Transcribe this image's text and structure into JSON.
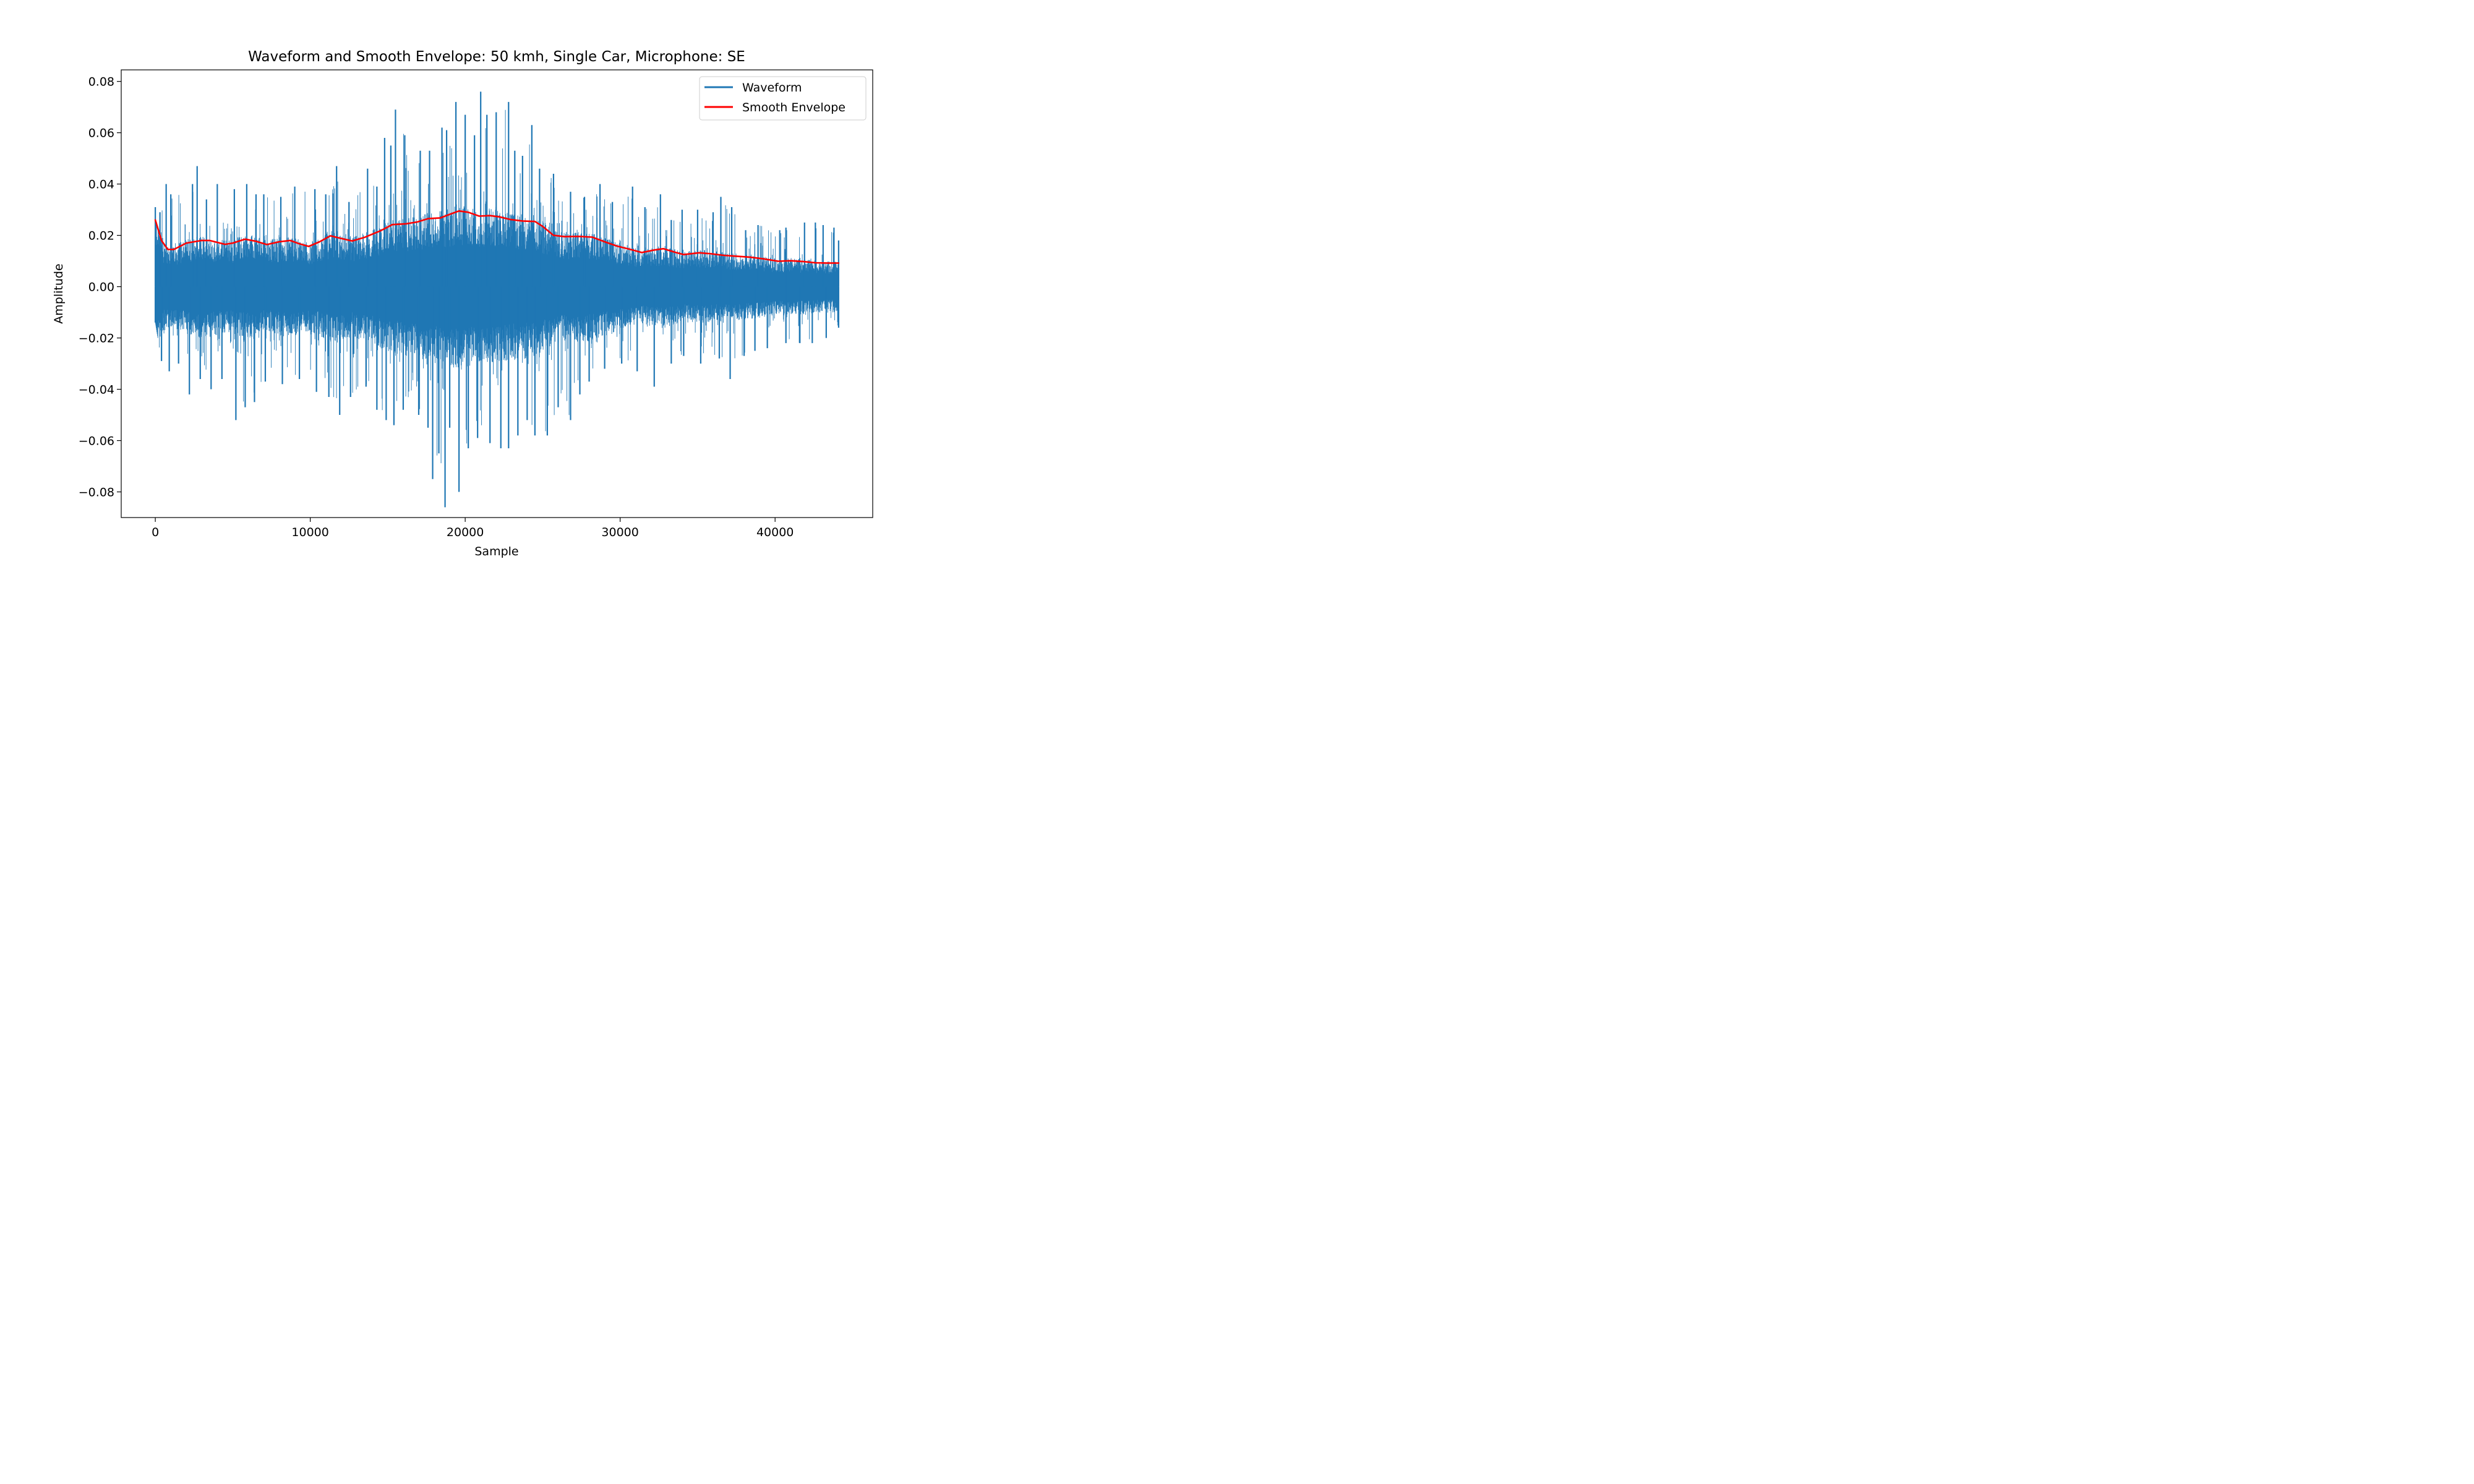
{
  "chart_data": {
    "type": "line",
    "title": "Waveform and Smooth Envelope: 50 kmh, Single Car, Microphone: SE",
    "xlabel": "Sample",
    "ylabel": "Amplitude",
    "xlim": [
      -2200,
      46300
    ],
    "ylim": [
      -0.09,
      0.0845
    ],
    "xticks": [
      0,
      10000,
      20000,
      30000,
      40000
    ],
    "xtick_labels": [
      "0",
      "10000",
      "20000",
      "30000",
      "40000"
    ],
    "yticks": [
      -0.08,
      -0.06,
      -0.04,
      -0.02,
      0.0,
      0.02,
      0.04,
      0.06,
      0.08
    ],
    "ytick_labels": [
      "−0.08",
      "−0.06",
      "−0.04",
      "−0.02",
      "0.00",
      "0.02",
      "0.04",
      "0.06",
      "0.08"
    ],
    "grid": false,
    "legend_position": "top-right",
    "series": [
      {
        "name": "Waveform",
        "color": "#1f77b4",
        "kind": "waveform",
        "x_range": [
          0,
          44100
        ],
        "peak_samples_positive": {
          "x": [
            0,
            300,
            700,
            1000,
            2400,
            2700,
            3300,
            4000,
            5100,
            5900,
            6500,
            7000,
            8100,
            9000,
            10300,
            11000,
            11700,
            12500,
            13700,
            14300,
            14800,
            15200,
            15500,
            16100,
            17100,
            17700,
            18500,
            18800,
            19400,
            20000,
            20600,
            21000,
            21400,
            22000,
            22800,
            23200,
            23700,
            24300,
            24800,
            25700,
            26800,
            27700,
            28700,
            29500,
            30800,
            31600,
            32600,
            33300,
            34000,
            35000,
            36000,
            36500,
            37200,
            38100,
            38900,
            40300,
            40700,
            41900,
            42600,
            43100,
            43800,
            44100
          ],
          "y": [
            0.031,
            0.029,
            0.04,
            0.036,
            0.04,
            0.047,
            0.034,
            0.04,
            0.038,
            0.04,
            0.036,
            0.036,
            0.035,
            0.039,
            0.038,
            0.036,
            0.047,
            0.033,
            0.046,
            0.039,
            0.058,
            0.055,
            0.069,
            0.059,
            0.053,
            0.053,
            0.062,
            0.061,
            0.072,
            0.067,
            0.059,
            0.076,
            0.067,
            0.068,
            0.072,
            0.053,
            0.051,
            0.063,
            0.046,
            0.044,
            0.037,
            0.035,
            0.04,
            0.033,
            0.039,
            0.031,
            0.036,
            0.026,
            0.03,
            0.03,
            0.029,
            0.035,
            0.031,
            0.022,
            0.024,
            0.022,
            0.023,
            0.025,
            0.025,
            0.024,
            0.023,
            0.018
          ]
        },
        "peak_samples_negative": {
          "x": [
            0,
            400,
            900,
            1500,
            2200,
            2900,
            3600,
            4300,
            5200,
            5800,
            6400,
            7100,
            8200,
            9300,
            10400,
            11200,
            11900,
            12600,
            13600,
            14300,
            14900,
            15400,
            16000,
            17000,
            17600,
            17900,
            18300,
            18700,
            19000,
            19600,
            20200,
            20800,
            21600,
            22300,
            22800,
            23400,
            24000,
            24500,
            25300,
            26000,
            26800,
            27400,
            28000,
            29000,
            30100,
            31100,
            32200,
            33300,
            34100,
            35200,
            36400,
            37100,
            38000,
            38700,
            39500,
            40700,
            41600,
            42400,
            43300,
            44100
          ],
          "y": [
            -0.014,
            -0.029,
            -0.033,
            -0.03,
            -0.042,
            -0.036,
            -0.04,
            -0.036,
            -0.052,
            -0.047,
            -0.045,
            -0.037,
            -0.038,
            -0.036,
            -0.041,
            -0.043,
            -0.05,
            -0.043,
            -0.039,
            -0.048,
            -0.052,
            -0.054,
            -0.048,
            -0.05,
            -0.055,
            -0.075,
            -0.065,
            -0.086,
            -0.055,
            -0.08,
            -0.063,
            -0.059,
            -0.061,
            -0.063,
            -0.063,
            -0.058,
            -0.052,
            -0.058,
            -0.058,
            -0.047,
            -0.052,
            -0.042,
            -0.037,
            -0.032,
            -0.03,
            -0.033,
            -0.039,
            -0.03,
            -0.027,
            -0.03,
            -0.028,
            -0.036,
            -0.027,
            -0.025,
            -0.024,
            -0.022,
            -0.022,
            -0.022,
            -0.02,
            -0.016
          ]
        }
      },
      {
        "name": "Smooth Envelope",
        "color": "#ff0000",
        "kind": "line",
        "x": [
          0,
          400,
          800,
          1200,
          2000,
          3000,
          3500,
          4500,
          5000,
          5800,
          6500,
          7200,
          8000,
          8700,
          9300,
          9900,
          10600,
          11300,
          12000,
          12700,
          13500,
          14500,
          15300,
          16200,
          16900,
          17600,
          18400,
          19000,
          19600,
          20200,
          20900,
          21600,
          22200,
          22900,
          23700,
          24500,
          25000,
          25700,
          26400,
          27300,
          28200,
          29000,
          29800,
          30600,
          31400,
          32200,
          32800,
          33500,
          34100,
          35100,
          35900,
          36700,
          37600,
          38400,
          39300,
          40200,
          41000,
          41800,
          42600,
          43400,
          44100
        ],
        "y": [
          0.026,
          0.018,
          0.0145,
          0.0145,
          0.017,
          0.018,
          0.018,
          0.0165,
          0.017,
          0.0185,
          0.0177,
          0.0164,
          0.0175,
          0.018,
          0.0167,
          0.0157,
          0.0175,
          0.0198,
          0.0188,
          0.0178,
          0.0192,
          0.0217,
          0.0242,
          0.0245,
          0.0252,
          0.0265,
          0.0268,
          0.0282,
          0.0295,
          0.029,
          0.0275,
          0.0277,
          0.0272,
          0.0262,
          0.0256,
          0.0254,
          0.0235,
          0.02,
          0.0195,
          0.0196,
          0.0193,
          0.0175,
          0.0158,
          0.0146,
          0.0133,
          0.0143,
          0.0148,
          0.0135,
          0.0125,
          0.0132,
          0.0128,
          0.0122,
          0.0118,
          0.0115,
          0.0108,
          0.0099,
          0.0101,
          0.0098,
          0.0093,
          0.0092,
          0.0092
        ]
      }
    ]
  }
}
